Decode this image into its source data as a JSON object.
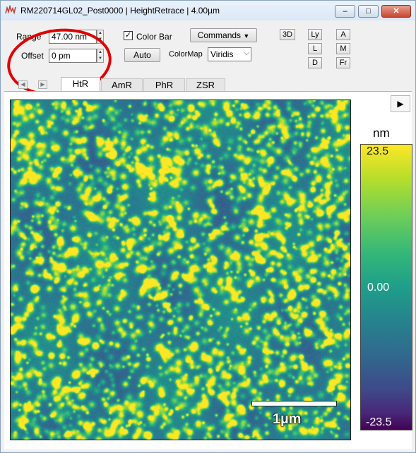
{
  "window": {
    "title": "RM220714GL02_Post0000  |  HeightRetrace  |  4.00µm",
    "controls": {
      "minimize": "–",
      "maximize": "□",
      "close": "✕"
    }
  },
  "toolbar": {
    "range_label": "Range",
    "range_value": "47.00 nm",
    "offset_label": "Offset",
    "offset_value": "0 pm",
    "colorbar_label": "Color Bar",
    "colorbar_checked": true,
    "commands_label": "Commands",
    "auto_label": "Auto",
    "colormap_label": "ColorMap",
    "colormap_value": "Viridis",
    "btn_3d": "3D",
    "btn_ly": "Ly",
    "btn_l": "L",
    "btn_d": "D",
    "btn_a": "A",
    "btn_m": "M",
    "btn_fr": "Fr"
  },
  "tabs": [
    {
      "label": "HtR",
      "active": true
    },
    {
      "label": "AmR",
      "active": false
    },
    {
      "label": "PhR",
      "active": false
    },
    {
      "label": "ZSR",
      "active": false
    }
  ],
  "image": {
    "scalebar_label": "1µm"
  },
  "colorbar": {
    "unit": "nm",
    "max_label": "23.5",
    "mid_label": "0.00",
    "min_label": "-23.5",
    "colormap": [
      "#fde725",
      "#b5de2b",
      "#6ece58",
      "#35b779",
      "#1f9e89",
      "#26828e",
      "#31688e",
      "#3e4989",
      "#482878",
      "#440154"
    ]
  },
  "annotation": {
    "color": "#e00000",
    "shape": "ellipse"
  }
}
